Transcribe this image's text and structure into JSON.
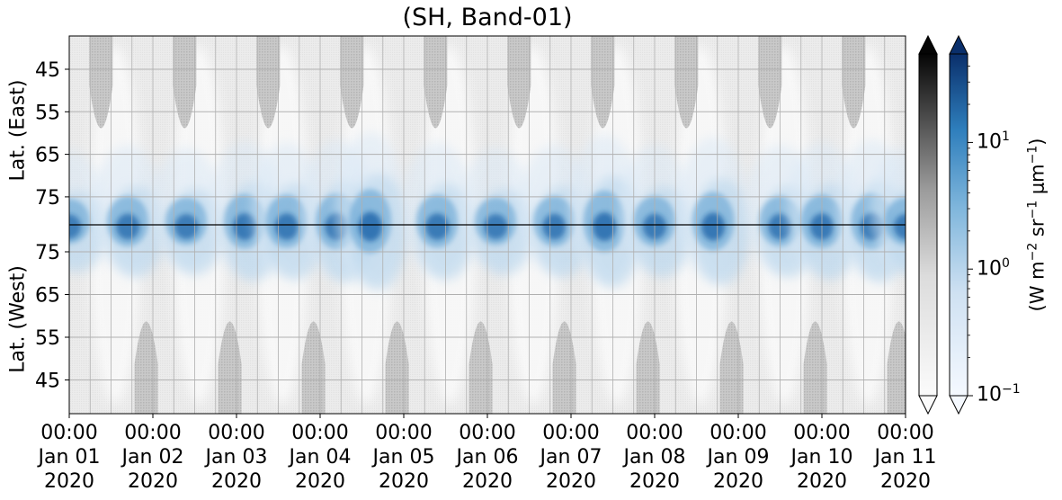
{
  "chart_data": {
    "type": "heatmap",
    "title": "(SH, Band-01)",
    "panels": [
      {
        "name": "east",
        "ylabel": "Lat. (East)",
        "yticks": [
          "45",
          "55",
          "65",
          "75"
        ]
      },
      {
        "name": "west",
        "ylabel": "Lat. (West)",
        "yticks": [
          "75",
          "65",
          "55",
          "45"
        ]
      }
    ],
    "xticks": [
      {
        "time": "00:00",
        "date": "Jan 01",
        "year": "2020"
      },
      {
        "time": "00:00",
        "date": "Jan 02",
        "year": "2020"
      },
      {
        "time": "00:00",
        "date": "Jan 03",
        "year": "2020"
      },
      {
        "time": "00:00",
        "date": "Jan 04",
        "year": "2020"
      },
      {
        "time": "00:00",
        "date": "Jan 05",
        "year": "2020"
      },
      {
        "time": "00:00",
        "date": "Jan 06",
        "year": "2020"
      },
      {
        "time": "00:00",
        "date": "Jan 07",
        "year": "2020"
      },
      {
        "time": "00:00",
        "date": "Jan 08",
        "year": "2020"
      },
      {
        "time": "00:00",
        "date": "Jan 09",
        "year": "2020"
      },
      {
        "time": "00:00",
        "date": "Jan 10",
        "year": "2020"
      },
      {
        "time": "00:00",
        "date": "Jan 11",
        "year": "2020"
      }
    ],
    "colorbars": [
      {
        "name": "greys",
        "colormap": "Greys",
        "scale": "log",
        "range": [
          0.1,
          50
        ],
        "extend": "both"
      },
      {
        "name": "blues",
        "colormap": "Blues",
        "scale": "log",
        "range": [
          0.1,
          50
        ],
        "extend": "both"
      }
    ],
    "colorbar_ticks": [
      {
        "base": "10",
        "exp": "1",
        "value": 10
      },
      {
        "base": "10",
        "exp": "0",
        "value": 1
      },
      {
        "base": "10",
        "exp": "−1",
        "value": 0.1
      }
    ],
    "colorbar_label": {
      "prefix": "(W m",
      "e1": "−2",
      "mid1": " sr",
      "e2": "−1",
      "mid2": " μm",
      "e3": "−1",
      "suffix": ")"
    },
    "grid": true,
    "emission_blobs_day": [
      {
        "day": 0.0,
        "lat_center": 80,
        "strength": 1.8
      },
      {
        "day": 0.7,
        "lat_center": 78,
        "strength": 2.2
      },
      {
        "day": 1.4,
        "lat_center": 82,
        "strength": 2.0
      },
      {
        "day": 2.1,
        "lat_center": 78,
        "strength": 2.5
      },
      {
        "day": 2.6,
        "lat_center": 76,
        "strength": 2.4
      },
      {
        "day": 3.2,
        "lat_center": 78,
        "strength": 2.6
      },
      {
        "day": 3.6,
        "lat_center": 82,
        "strength": 3.2
      },
      {
        "day": 4.4,
        "lat_center": 78,
        "strength": 2.4
      },
      {
        "day": 5.1,
        "lat_center": 80,
        "strength": 2.0
      },
      {
        "day": 5.8,
        "lat_center": 78,
        "strength": 2.2
      },
      {
        "day": 6.4,
        "lat_center": 79,
        "strength": 3.0
      },
      {
        "day": 7.0,
        "lat_center": 80,
        "strength": 2.2
      },
      {
        "day": 7.7,
        "lat_center": 80,
        "strength": 2.8
      },
      {
        "day": 8.5,
        "lat_center": 79,
        "strength": 2.2
      },
      {
        "day": 9.0,
        "lat_center": 78,
        "strength": 2.4
      },
      {
        "day": 9.6,
        "lat_center": 80,
        "strength": 2.6
      },
      {
        "day": 10.0,
        "lat_center": 76,
        "strength": 2.0
      }
    ],
    "nodata_east_day": [
      0.38,
      1.38,
      2.38,
      3.38,
      4.38,
      5.38,
      6.38,
      7.38,
      8.38,
      9.38
    ],
    "nodata_west_day": [
      0.92,
      1.92,
      2.92,
      3.92,
      4.92,
      5.92,
      6.92,
      7.92,
      8.92,
      9.92
    ]
  }
}
